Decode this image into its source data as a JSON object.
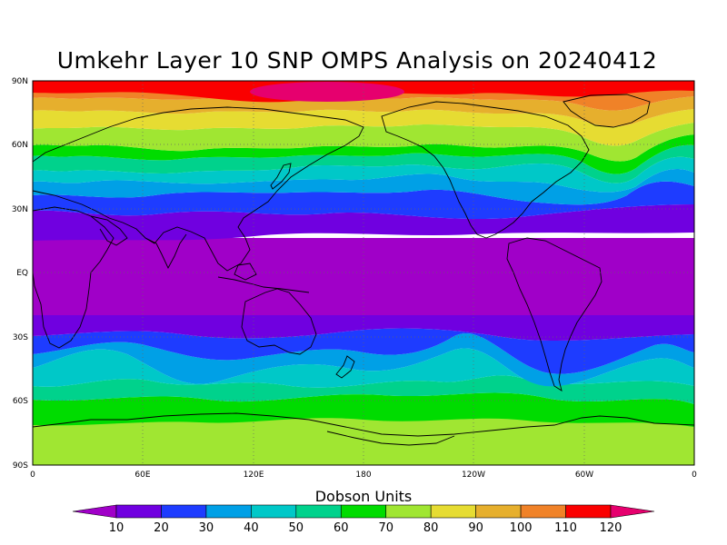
{
  "title": "Umkehr Layer 10 SNP OMPS Analysis on 20240412",
  "legend": {
    "title": "Dobson Units",
    "levels": [
      "10",
      "20",
      "30",
      "40",
      "50",
      "60",
      "70",
      "80",
      "90",
      "100",
      "110",
      "120"
    ],
    "colors": [
      "#a000c8",
      "#7000e0",
      "#1e3cff",
      "#00a0e6",
      "#00c8c8",
      "#00d28c",
      "#00dc00",
      "#a0e632",
      "#e6dc32",
      "#e6af2d",
      "#f08228",
      "#fa0000",
      "#e6006e"
    ]
  },
  "axes": {
    "lat_labels": [
      "90N",
      "60N",
      "30N",
      "EQ",
      "30S",
      "60S",
      "90S"
    ],
    "lon_labels": [
      "0",
      "60E",
      "120E",
      "180",
      "120W",
      "60W",
      "0"
    ]
  },
  "chart_data": {
    "type": "heatmap",
    "title": "Umkehr Layer 10 SNP OMPS Analysis on 20240412",
    "units": "Dobson Units",
    "xlim": [
      0,
      360
    ],
    "ylim": [
      -90,
      90
    ],
    "contour_levels": [
      10,
      20,
      30,
      40,
      50,
      60,
      70,
      80,
      90,
      100,
      110,
      120
    ],
    "zonal_profile": [
      {
        "lat": 88,
        "value": 120
      },
      {
        "lat": 82,
        "value": 110
      },
      {
        "lat": 76,
        "value": 100
      },
      {
        "lat": 68,
        "value": 90
      },
      {
        "lat": 62,
        "value": 80
      },
      {
        "lat": 55,
        "value": 70
      },
      {
        "lat": 49,
        "value": 60
      },
      {
        "lat": 44,
        "value": 50
      },
      {
        "lat": 39,
        "value": 40
      },
      {
        "lat": 34,
        "value": 30
      },
      {
        "lat": 27,
        "value": 20
      },
      {
        "lat": 0,
        "value": 10
      },
      {
        "lat": -20,
        "value": 10
      },
      {
        "lat": -28,
        "value": 20
      },
      {
        "lat": -38,
        "value": 30
      },
      {
        "lat": -45,
        "value": 40
      },
      {
        "lat": -51,
        "value": 50
      },
      {
        "lat": -56,
        "value": 60
      },
      {
        "lat": -64,
        "value": 70
      },
      {
        "lat": -76,
        "value": 80
      }
    ]
  }
}
